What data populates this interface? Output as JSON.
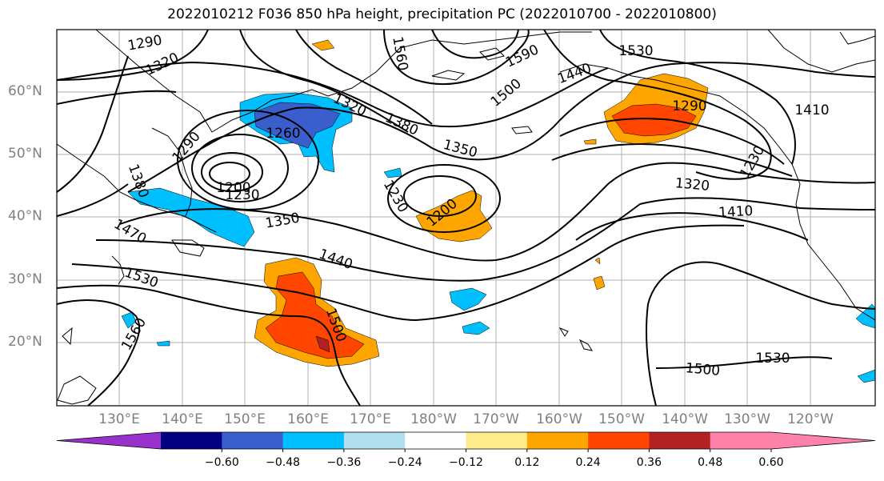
{
  "title": "2022010212 F036 850 hPa height, precipitation PC (2022010700 - 2022010800)",
  "lat_labels": [
    "60°N",
    "50°N",
    "40°N",
    "30°N",
    "20°N"
  ],
  "lon_labels": [
    "130°E",
    "140°E",
    "150°E",
    "160°E",
    "170°E",
    "180°W",
    "170°W",
    "160°W",
    "150°W",
    "140°W",
    "130°W",
    "120°W"
  ],
  "contour_labels": [
    "1290",
    "1320",
    "1560",
    "1590",
    "1530",
    "1410",
    "1440",
    "1500",
    "1320",
    "1380",
    "1350",
    "1260",
    "1290",
    "1290",
    "1200",
    "1230",
    "1230",
    "1200",
    "1380",
    "1470",
    "1530",
    "1350",
    "1440",
    "1500",
    "1560",
    "1320",
    "1410",
    "1230",
    "1530",
    "1500"
  ],
  "colorbar": {
    "ticks": [
      "−0.60",
      "−0.48",
      "−0.36",
      "−0.24",
      "−0.12",
      "0.12",
      "0.24",
      "0.36",
      "0.48",
      "0.60"
    ],
    "colors": [
      "#9932cc",
      "#000080",
      "#3a5fcd",
      "#00bfff",
      "#b2dfee",
      "#ffffff",
      "#ffec8b",
      "#ffa500",
      "#ff4500",
      "#b22222",
      "#ff82ab",
      "#ff82ab"
    ]
  }
}
